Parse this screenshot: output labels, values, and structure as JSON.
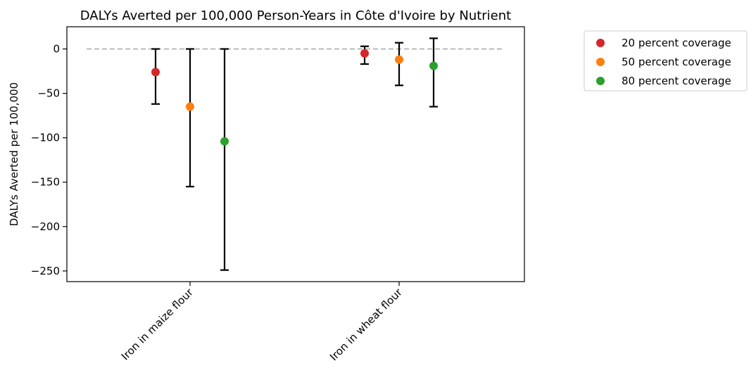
{
  "chart_data": {
    "type": "scatter",
    "title": "DALYs Averted per 100,000 Person-Years in Côte d'Ivoire by Nutrient",
    "xlabel": "",
    "ylabel": "DALYs Averted per 100,000",
    "categories": [
      "Iron in maize flour",
      "Iron in wheat flour"
    ],
    "ylim": [
      -262,
      25
    ],
    "yticks": [
      0,
      -50,
      -100,
      -150,
      -200,
      -250
    ],
    "ytick_labels": [
      "0",
      "−50",
      "−100",
      "−150",
      "−200",
      "−250"
    ],
    "reference_line": {
      "y": 0,
      "style": "dashed",
      "color": "#bbbbbb"
    },
    "grid": false,
    "legend_position": "outside top-right",
    "series": [
      {
        "name": "20 percent coverage",
        "color": "#d62728",
        "values": [
          -26,
          -5
        ],
        "lower": [
          -62,
          -17
        ],
        "upper": [
          0,
          3
        ]
      },
      {
        "name": "50 percent coverage",
        "color": "#ff7f0e",
        "values": [
          -65,
          -12
        ],
        "lower": [
          -155,
          -41
        ],
        "upper": [
          0,
          7
        ]
      },
      {
        "name": "80 percent coverage",
        "color": "#2ca02c",
        "values": [
          -104,
          -19
        ],
        "lower": [
          -249,
          -65
        ],
        "upper": [
          0,
          12
        ]
      }
    ]
  }
}
